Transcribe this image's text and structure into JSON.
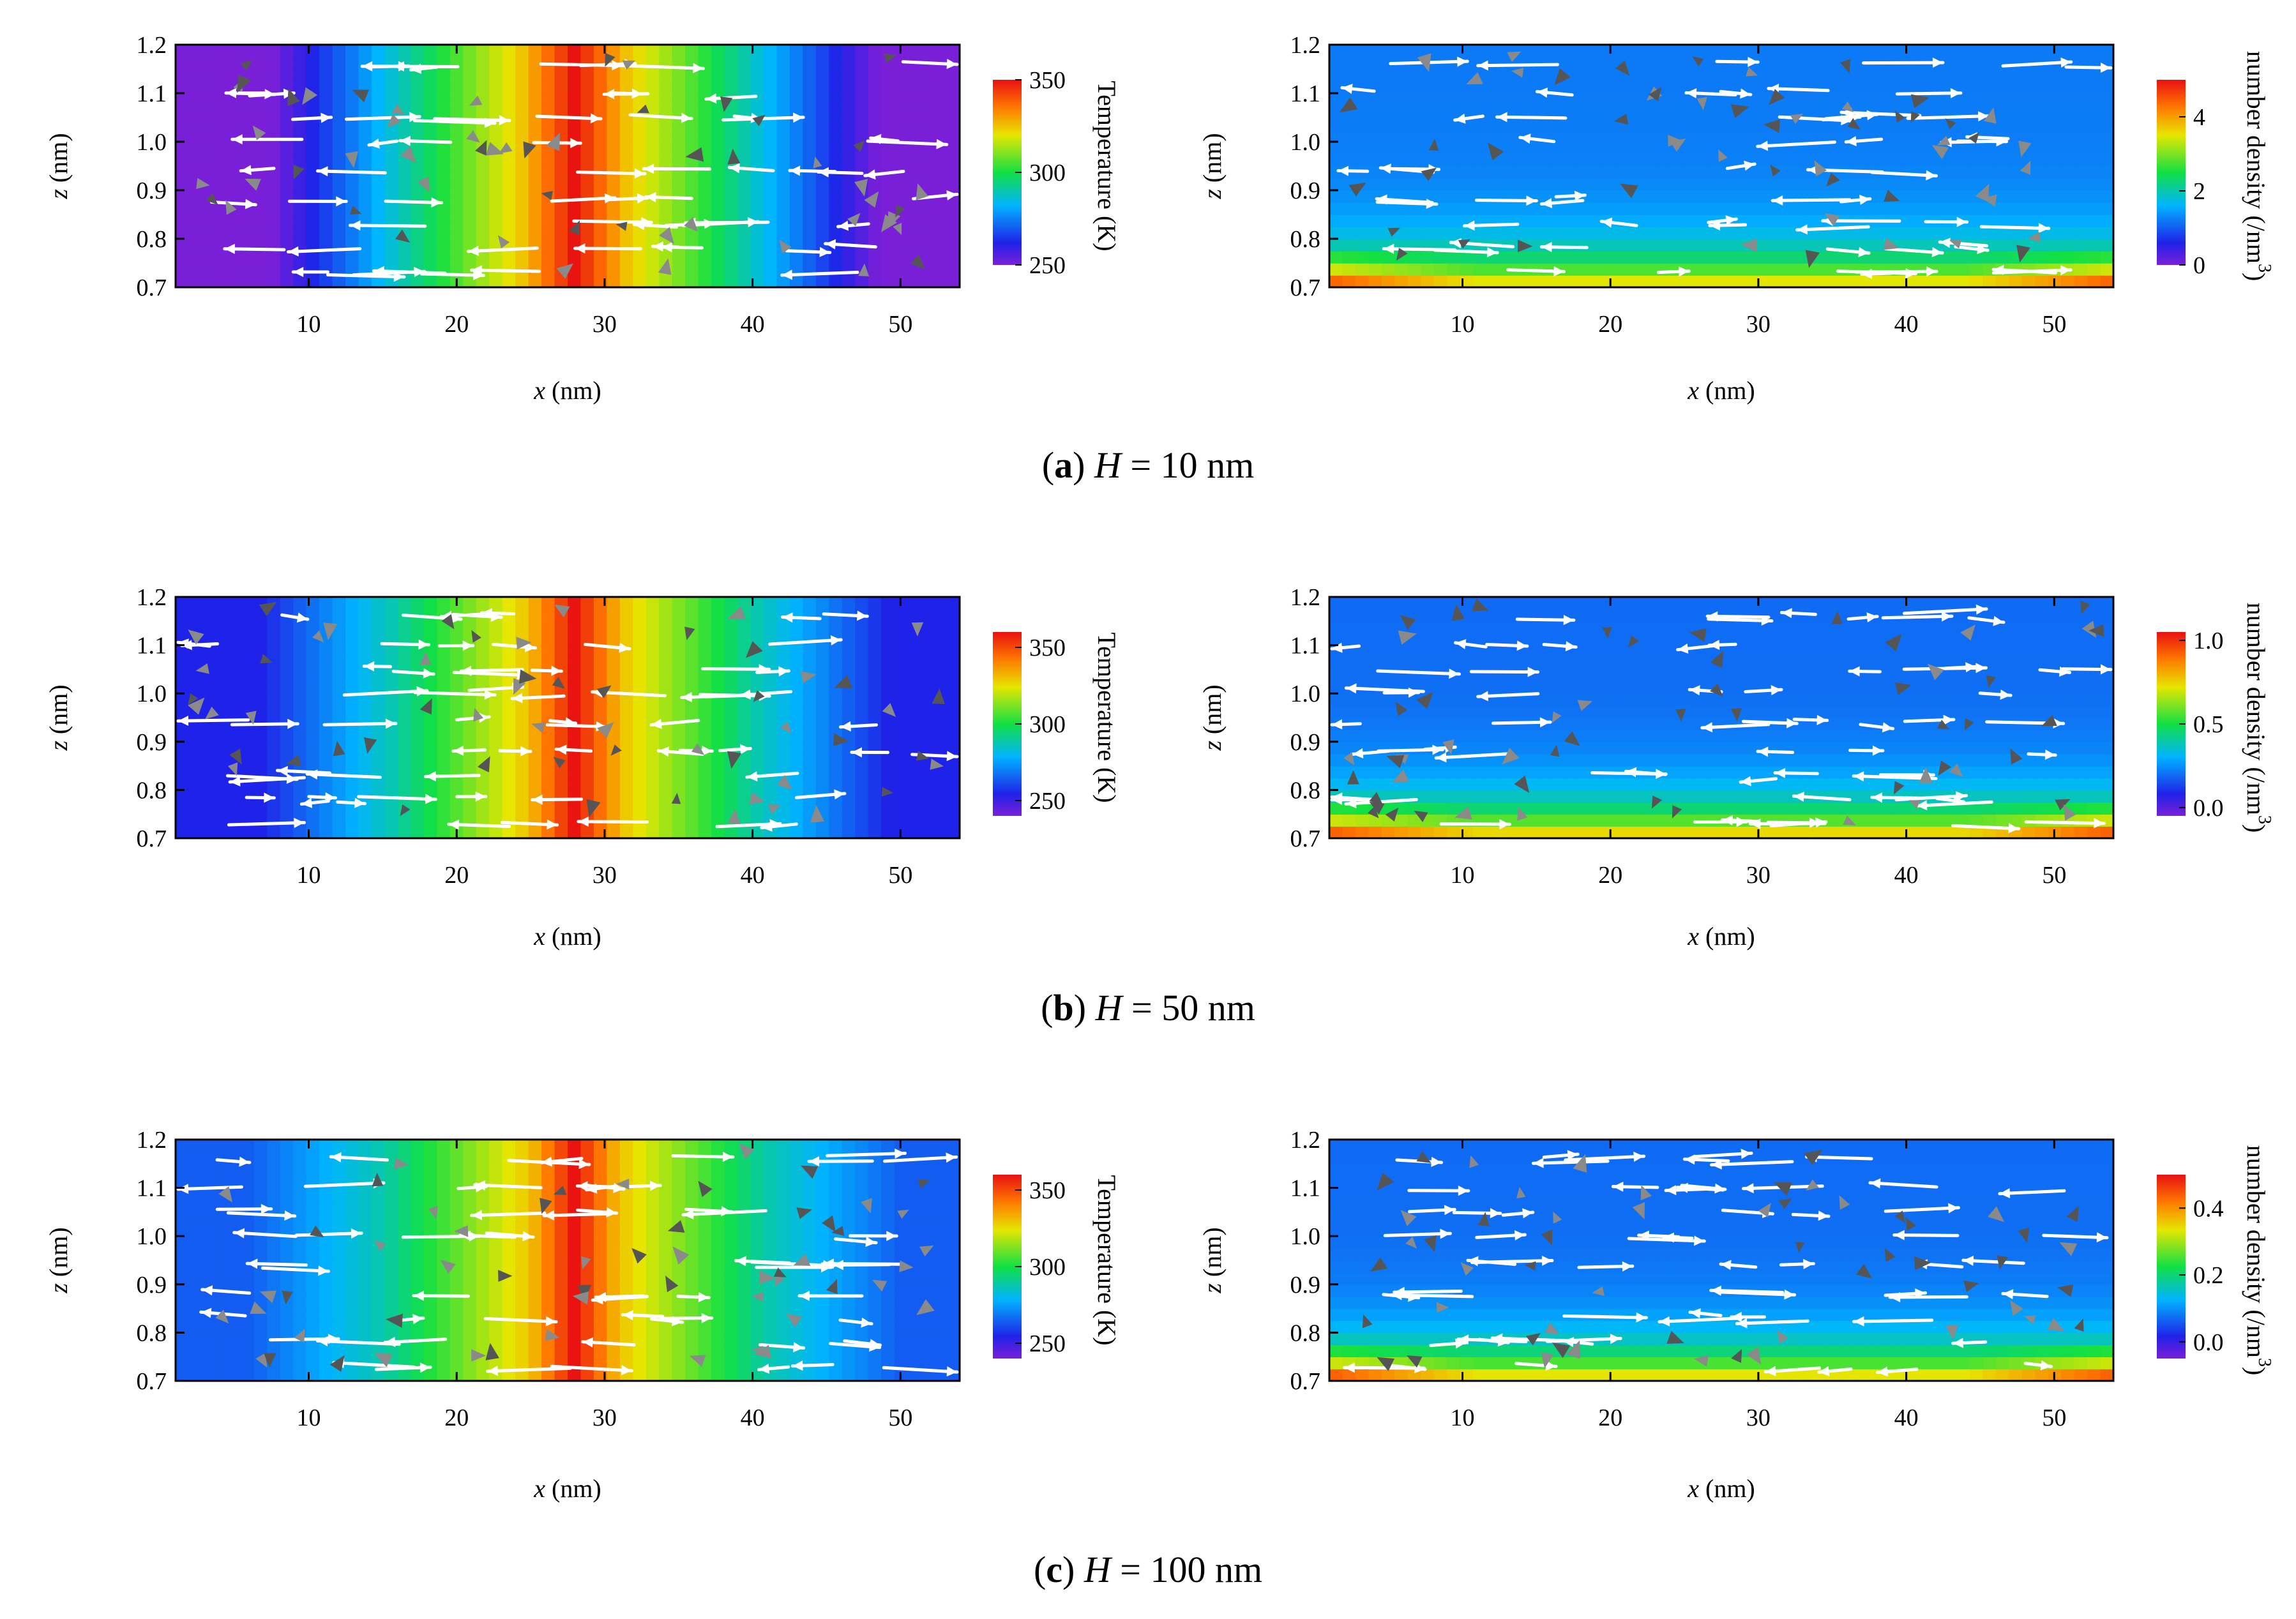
{
  "figure": {
    "rows": [
      {
        "caption": {
          "label": "a",
          "variable": "H",
          "equals": "=",
          "value": "10 nm"
        },
        "panels": [
          {
            "quantity": "temperature",
            "colorbar": {
              "label": "Temperature (K)",
              "min": 250,
              "max": 350,
              "ticks": [
                "250",
                "300",
                "350"
              ],
              "tick_values": [
                250,
                300,
                350
              ]
            },
            "field": {
              "shape": "stripe",
              "center": 28,
              "hot_width": 3.5,
              "mid_width": 8,
              "bg": 0.0,
              "bottom_gain": 0.0
            }
          },
          {
            "quantity": "number_density",
            "colorbar": {
              "label": "number density (/nm",
              "superscript": "3",
              "label_close": ")",
              "min": 0,
              "max": 5,
              "ticks": [
                "0",
                "2",
                "4"
              ],
              "tick_values": [
                0,
                2,
                4
              ]
            },
            "field": {
              "shape": "layer",
              "base": 0.24,
              "layer_strength": 0.55,
              "corner_strength": 0.22
            }
          }
        ]
      },
      {
        "caption": {
          "label": "b",
          "variable": "H",
          "equals": "=",
          "value": "50 nm"
        },
        "panels": [
          {
            "quantity": "temperature",
            "colorbar": {
              "label": "Temperature (K)",
              "min": 240,
              "max": 360,
              "ticks": [
                "250",
                "300",
                "350"
              ],
              "tick_values": [
                250,
                300,
                350
              ]
            },
            "field": {
              "shape": "stripe",
              "center": 28,
              "hot_width": 3.2,
              "mid_width": 9,
              "bg": 0.12,
              "bottom_gain": 0.0
            }
          },
          {
            "quantity": "number_density",
            "colorbar": {
              "label": "number density (/nm",
              "superscript": "3",
              "label_close": ")",
              "min": -0.05,
              "max": 1.05,
              "ticks": [
                "0.0",
                "0.5",
                "1.0"
              ],
              "tick_values": [
                0.0,
                0.5,
                1.0
              ]
            },
            "field": {
              "shape": "layer",
              "base": 0.22,
              "layer_strength": 0.6,
              "corner_strength": 0.2
            }
          }
        ]
      },
      {
        "caption": {
          "label": "c",
          "variable": "H",
          "equals": "=",
          "value": "100 nm"
        },
        "panels": [
          {
            "quantity": "temperature",
            "colorbar": {
              "label": "Temperature (K)",
              "min": 240,
              "max": 360,
              "ticks": [
                "250",
                "300",
                "350"
              ],
              "tick_values": [
                250,
                300,
                350
              ]
            },
            "field": {
              "shape": "stripe",
              "center": 28,
              "hot_width": 3.0,
              "mid_width": 10,
              "bg": 0.2,
              "bottom_gain": 0.0
            }
          },
          {
            "quantity": "number_density",
            "colorbar": {
              "label": "number density (/nm",
              "superscript": "3",
              "label_close": ")",
              "min": -0.05,
              "max": 0.5,
              "ticks": [
                "0.0",
                "0.2",
                "0.4"
              ],
              "tick_values": [
                0.0,
                0.2,
                0.4
              ]
            },
            "field": {
              "shape": "layer",
              "base": 0.22,
              "layer_strength": 0.58,
              "corner_strength": 0.22
            }
          }
        ]
      }
    ]
  },
  "chart_data": [
    {
      "type": "heatmap",
      "title": "(a) H = 10 nm — temperature",
      "xlabel": "x (nm)",
      "ylabel": "z (nm)",
      "xlim": [
        1,
        54
      ],
      "ylim": [
        0.7,
        1.2
      ],
      "x_ticks": [
        10,
        20,
        30,
        40,
        50
      ],
      "y_ticks": [
        0.7,
        0.8,
        0.9,
        1.0,
        1.1,
        1.2
      ],
      "colorbar": {
        "label": "Temperature (K)",
        "ticks": [
          250,
          300,
          350
        ]
      },
      "description_values": {
        "hot_stripe_center_x": 28,
        "peak_temperature_K": 350,
        "edge_temperature_K": 250
      }
    },
    {
      "type": "heatmap",
      "title": "(a) H = 10 nm — number density",
      "xlabel": "x (nm)",
      "ylabel": "z (nm)",
      "xlim": [
        1,
        54
      ],
      "ylim": [
        0.7,
        1.2
      ],
      "x_ticks": [
        10,
        20,
        30,
        40,
        50
      ],
      "y_ticks": [
        0.7,
        0.8,
        0.9,
        1.0,
        1.1,
        1.2
      ],
      "colorbar": {
        "label": "number density (/nm3)",
        "ticks": [
          0,
          2,
          4
        ]
      },
      "description_values": {
        "dense_layer_z_nm": 0.72,
        "peak_density": 4
      }
    },
    {
      "type": "heatmap",
      "title": "(b) H = 50 nm — temperature",
      "xlabel": "x (nm)",
      "ylabel": "z (nm)",
      "xlim": [
        1,
        54
      ],
      "ylim": [
        0.7,
        1.2
      ],
      "x_ticks": [
        10,
        20,
        30,
        40,
        50
      ],
      "y_ticks": [
        0.7,
        0.8,
        0.9,
        1.0,
        1.1,
        1.2
      ],
      "colorbar": {
        "label": "Temperature (K)",
        "ticks": [
          250,
          300,
          350
        ]
      },
      "description_values": {
        "hot_stripe_center_x": 28,
        "peak_temperature_K": 350
      }
    },
    {
      "type": "heatmap",
      "title": "(b) H = 50 nm — number density",
      "xlabel": "x (nm)",
      "ylabel": "z (nm)",
      "xlim": [
        1,
        54
      ],
      "ylim": [
        0.7,
        1.2
      ],
      "x_ticks": [
        10,
        20,
        30,
        40,
        50
      ],
      "y_ticks": [
        0.7,
        0.8,
        0.9,
        1.0,
        1.1,
        1.2
      ],
      "colorbar": {
        "label": "number density (/nm3)",
        "ticks": [
          0.0,
          0.5,
          1.0
        ]
      },
      "description_values": {
        "dense_layer_z_nm": 0.72,
        "peak_density": 1.0
      }
    },
    {
      "type": "heatmap",
      "title": "(c) H = 100 nm — temperature",
      "xlabel": "x (nm)",
      "ylabel": "z (nm)",
      "xlim": [
        1,
        54
      ],
      "ylim": [
        0.7,
        1.2
      ],
      "x_ticks": [
        10,
        20,
        30,
        40,
        50
      ],
      "y_ticks": [
        0.7,
        0.8,
        0.9,
        1.0,
        1.1,
        1.2
      ],
      "colorbar": {
        "label": "Temperature (K)",
        "ticks": [
          250,
          300,
          350
        ]
      },
      "description_values": {
        "hot_stripe_center_x": 28,
        "peak_temperature_K": 350
      }
    },
    {
      "type": "heatmap",
      "title": "(c) H = 100 nm — number density",
      "xlabel": "x (nm)",
      "ylabel": "z (nm)",
      "xlim": [
        1,
        54
      ],
      "ylim": [
        0.7,
        1.2
      ],
      "x_ticks": [
        10,
        20,
        30,
        40,
        50
      ],
      "y_ticks": [
        0.7,
        0.8,
        0.9,
        1.0,
        1.1,
        1.2
      ],
      "colorbar": {
        "label": "number density (/nm3)",
        "ticks": [
          0.0,
          0.2,
          0.4
        ]
      },
      "description_values": {
        "dense_layer_z_nm": 0.72,
        "peak_density": 0.4
      }
    }
  ],
  "axes": {
    "x_label_var": "x",
    "x_label_unit": "(nm)",
    "y_label_var": "z",
    "y_label_unit": "(nm)",
    "x_range": [
      1,
      54
    ],
    "y_range": [
      0.7,
      1.2
    ],
    "x_ticks": [
      10,
      20,
      30,
      40,
      50
    ],
    "x_tick_labels": [
      "10",
      "20",
      "30",
      "40",
      "50"
    ],
    "y_ticks": [
      0.7,
      0.8,
      0.9,
      1.0,
      1.1,
      1.2
    ],
    "y_tick_labels": [
      "0.7",
      "0.8",
      "0.9",
      "1.0",
      "1.1",
      "1.2"
    ]
  },
  "arrows": {
    "colors": {
      "flow": "#ffffff",
      "cluster": "#8a8a8a",
      "cluster_dark": "#555555"
    },
    "flow_rows_z": [
      0.73,
      0.78,
      0.83,
      0.88,
      0.94,
      1.0,
      1.05,
      1.1,
      1.16
    ]
  }
}
